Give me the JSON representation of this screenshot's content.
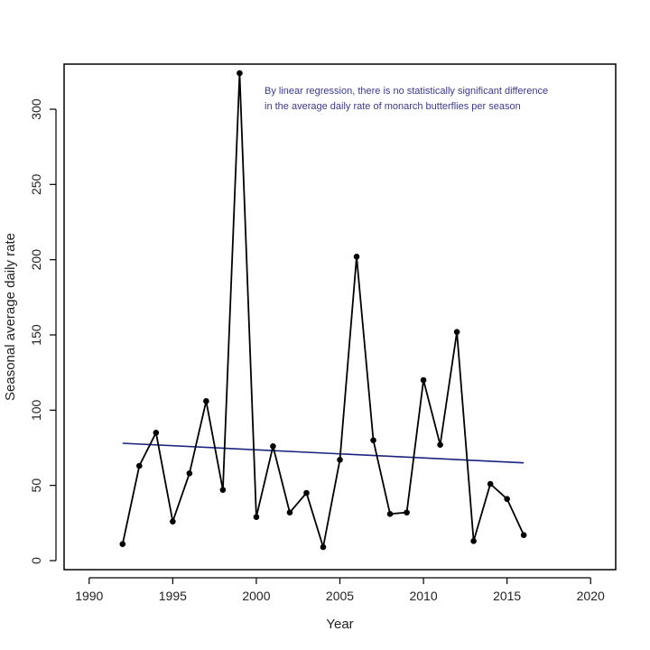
{
  "chart_data": {
    "type": "line",
    "xlabel": "Year",
    "ylabel": "Seasonal average daily rate",
    "xlim": [
      1988.5,
      2021.5
    ],
    "ylim": [
      -6,
      330
    ],
    "x_ticks": [
      1990,
      1995,
      2000,
      2005,
      2010,
      2015,
      2020
    ],
    "y_ticks": [
      0,
      50,
      100,
      150,
      200,
      250,
      300
    ],
    "grid": false,
    "series": [
      {
        "x": [
          1992,
          1993,
          1994,
          1995,
          1996,
          1997,
          1998,
          1999,
          2000,
          2001,
          2002,
          2003,
          2004,
          2005,
          2006,
          2007,
          2008,
          2009,
          2010,
          2011,
          2012,
          2013,
          2014,
          2015,
          2016
        ],
        "values": [
          11,
          63,
          85,
          26,
          58,
          106,
          47,
          324,
          29,
          76,
          32,
          45,
          9,
          67,
          202,
          80,
          31,
          32,
          120,
          77,
          152,
          13,
          51,
          41,
          17
        ],
        "color": "#000000",
        "marker": "circle"
      }
    ],
    "regression_line": {
      "x": [
        1992,
        2016
      ],
      "y": [
        78,
        65
      ],
      "color": "#1a237e"
    },
    "annotation": {
      "lines": [
        "By linear regression, there is no statistically significant difference",
        "in the average daily rate of monarch butterflies per season"
      ],
      "color": "#3a3a8c"
    }
  }
}
